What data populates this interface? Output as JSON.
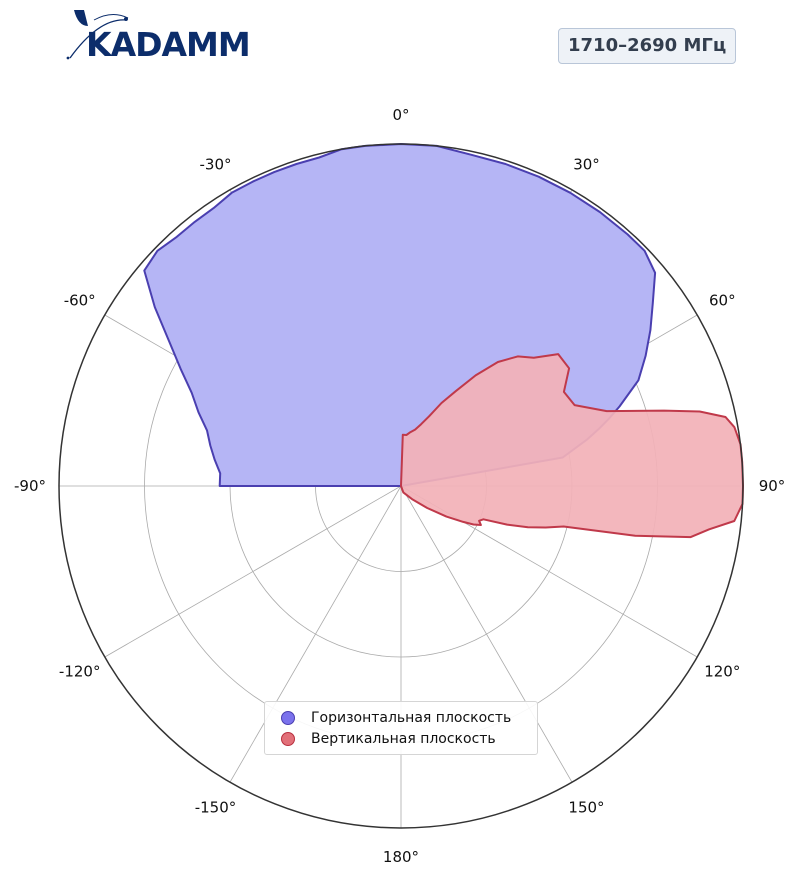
{
  "brand": {
    "logo_text": "KADAMM"
  },
  "frequency_band": "1710–2690 МГц",
  "colors": {
    "horizontal_fill": "#b5b5f5",
    "horizontal_line": "#4a3fb0",
    "vertical_fill": "#f2b2b8",
    "vertical_line": "#c0394a",
    "grid": "#aaaaaa",
    "frame": "#333333"
  },
  "chart_data": {
    "type": "polar-area",
    "angular_unit": "degrees",
    "zero_location": "top",
    "direction": "clockwise",
    "angular_ticks": [
      0,
      30,
      60,
      90,
      120,
      150,
      180,
      -150,
      -120,
      -90,
      -60,
      -30
    ],
    "angular_tick_labels": [
      "0°",
      "30°",
      "60°",
      "90°",
      "120°",
      "150°",
      "180°",
      "-150°",
      "-120°",
      "-90°",
      "-60°",
      "-30°"
    ],
    "radial_range": [
      0,
      1
    ],
    "radial_gridlines": [
      0.25,
      0.5,
      0.75,
      1.0
    ],
    "radial_tick_labels_visible": false,
    "legend_position": "bottom-center",
    "series": [
      {
        "name": "Горизонтальная плоскость",
        "points": [
          [
            -90,
            0.53
          ],
          [
            -86,
            0.53
          ],
          [
            -82,
            0.55
          ],
          [
            -78,
            0.57
          ],
          [
            -74,
            0.59
          ],
          [
            -70,
            0.63
          ],
          [
            -66,
            0.67
          ],
          [
            -62,
            0.73
          ],
          [
            -58,
            0.8
          ],
          [
            -54,
            0.89
          ],
          [
            -50,
            0.98
          ],
          [
            -46,
            0.99
          ],
          [
            -42,
            0.98
          ],
          [
            -38,
            0.98
          ],
          [
            -34,
            0.98
          ],
          [
            -30,
            0.99
          ],
          [
            -26,
            0.99
          ],
          [
            -22,
            0.99
          ],
          [
            -18,
            0.99
          ],
          [
            -14,
            0.99
          ],
          [
            -10,
            1.0
          ],
          [
            -6,
            1.0
          ],
          [
            0,
            1.0
          ],
          [
            6,
            1.0
          ],
          [
            12,
            0.99
          ],
          [
            18,
            0.99
          ],
          [
            24,
            0.99
          ],
          [
            30,
            0.99
          ],
          [
            36,
            0.99
          ],
          [
            42,
            0.99
          ],
          [
            46,
            0.99
          ],
          [
            50,
            0.97
          ],
          [
            54,
            0.91
          ],
          [
            58,
            0.86
          ],
          [
            62,
            0.81
          ],
          [
            66,
            0.76
          ],
          [
            70,
            0.68
          ],
          [
            72,
            0.64
          ],
          [
            74,
            0.6
          ],
          [
            76,
            0.56
          ],
          [
            80,
            0.48
          ],
          [
            90,
            0.0
          ]
        ]
      },
      {
        "name": "Вертикальная плоскость",
        "points": [
          [
            2,
            0.15
          ],
          [
            6,
            0.15
          ],
          [
            10,
            0.16
          ],
          [
            14,
            0.17
          ],
          [
            18,
            0.19
          ],
          [
            22,
            0.22
          ],
          [
            26,
            0.27
          ],
          [
            30,
            0.32
          ],
          [
            34,
            0.39
          ],
          [
            38,
            0.46
          ],
          [
            42,
            0.51
          ],
          [
            46,
            0.54
          ],
          [
            50,
            0.6
          ],
          [
            55,
            0.6
          ],
          [
            60,
            0.55
          ],
          [
            65,
            0.56
          ],
          [
            70,
            0.64
          ],
          [
            74,
            0.8
          ],
          [
            76,
            0.9
          ],
          [
            78,
            0.97
          ],
          [
            80,
            0.99
          ],
          [
            83,
            1.0
          ],
          [
            86,
            1.0
          ],
          [
            90,
            1.0
          ],
          [
            93,
            1.0
          ],
          [
            96,
            0.98
          ],
          [
            98,
            0.91
          ],
          [
            100,
            0.86
          ],
          [
            102,
            0.7
          ],
          [
            104,
            0.49
          ],
          [
            106,
            0.44
          ],
          [
            108,
            0.39
          ],
          [
            110,
            0.33
          ],
          [
            112,
            0.26
          ],
          [
            114,
            0.25
          ],
          [
            116,
            0.26
          ],
          [
            118,
            0.24
          ],
          [
            120,
            0.21
          ],
          [
            124,
            0.16
          ],
          [
            130,
            0.1
          ],
          [
            140,
            0.05
          ],
          [
            160,
            0.02
          ],
          [
            180,
            0.0
          ]
        ]
      }
    ]
  }
}
